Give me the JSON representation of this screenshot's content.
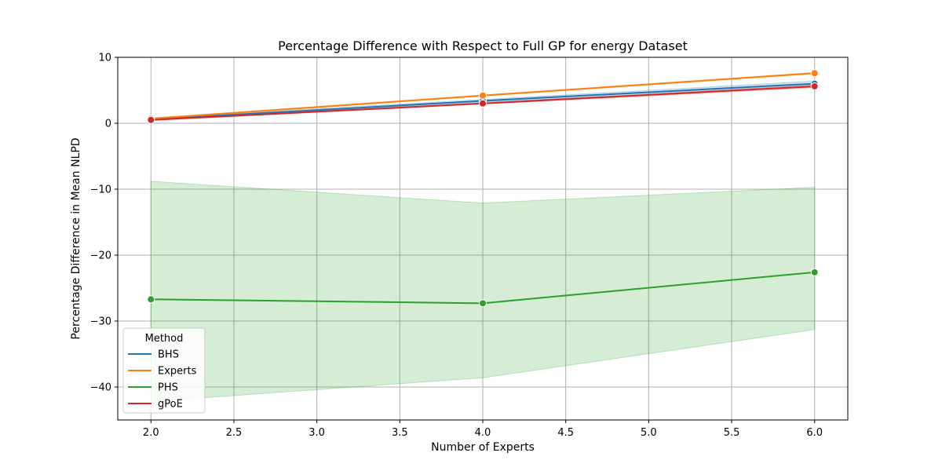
{
  "chart_data": {
    "type": "line",
    "title": "Percentage Difference with Respect to Full GP for energy Dataset",
    "xlabel": "Number of Experts",
    "ylabel": "Percentage Difference in Mean NLPD",
    "xlim": [
      1.8,
      6.2
    ],
    "ylim": [
      -45,
      10
    ],
    "xticks": [
      2.0,
      2.5,
      3.0,
      3.5,
      4.0,
      4.5,
      5.0,
      5.5,
      6.0
    ],
    "xtick_labels": [
      "2.0",
      "2.5",
      "3.0",
      "3.5",
      "4.0",
      "4.5",
      "5.0",
      "5.5",
      "6.0"
    ],
    "yticks": [
      -40,
      -30,
      -20,
      -10,
      0,
      10
    ],
    "ytick_labels": [
      "−40",
      "−30",
      "−20",
      "−10",
      "0",
      "10"
    ],
    "grid": true,
    "legend": {
      "title": "Method",
      "location": "lower-left"
    },
    "x": [
      2,
      4,
      6
    ],
    "series": [
      {
        "name": "BHS",
        "color": "#1f77b4",
        "values": [
          0.6,
          3.4,
          6.0
        ],
        "ci_lower": [
          0.5,
          3.2,
          5.5
        ],
        "ci_upper": [
          0.8,
          3.6,
          6.4
        ]
      },
      {
        "name": "Experts",
        "color": "#ff7f0e",
        "values": [
          0.7,
          4.2,
          7.6
        ],
        "ci_lower": [
          0.6,
          4.1,
          7.5
        ],
        "ci_upper": [
          0.8,
          4.3,
          7.7
        ]
      },
      {
        "name": "PHS",
        "color": "#2ca02c",
        "values": [
          -26.7,
          -27.3,
          -22.6
        ],
        "ci_lower": [
          -42.2,
          -38.6,
          -31.3
        ],
        "ci_upper": [
          -8.8,
          -12.1,
          -9.7
        ]
      },
      {
        "name": "gPoE",
        "color": "#d62728",
        "values": [
          0.5,
          3.0,
          5.6
        ],
        "ci_lower": [
          0.4,
          2.9,
          5.4
        ],
        "ci_upper": [
          0.6,
          3.1,
          5.8
        ]
      }
    ]
  }
}
